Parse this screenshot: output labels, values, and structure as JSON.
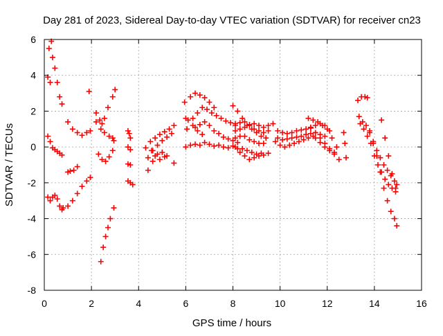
{
  "chart_data": {
    "type": "scatter",
    "title": "Day 281 of 2023, Sidereal Day-to-day VTEC variation (SDTVAR) for receiver cn23",
    "xlabel": "GPS time / hours",
    "ylabel": "SDTVAR / TECUs",
    "xlim": [
      0,
      16
    ],
    "ylim": [
      -8,
      6
    ],
    "xticks": [
      0,
      2,
      4,
      6,
      8,
      10,
      12,
      14,
      16
    ],
    "xtick_labels": [
      "0",
      "2",
      "4",
      "6",
      "8",
      "10",
      "12",
      "14",
      "16"
    ],
    "yticks": [
      -8,
      -6,
      -4,
      -2,
      0,
      2,
      4,
      6
    ],
    "ytick_labels": [
      "-8",
      "-6",
      "-4",
      "-2",
      "0",
      "2",
      "4",
      "6"
    ],
    "grid": true,
    "marker": "plus",
    "marker_color": "#ff0000",
    "segments": [
      {
        "x": [
          0.2,
          0.3,
          0.35,
          0.45,
          0.55,
          0.65,
          0.75
        ],
        "y": [
          5.5,
          5.9,
          5.0,
          4.4,
          3.6,
          2.8,
          2.4
        ]
      },
      {
        "x": [
          0.15,
          0.25
        ],
        "y": [
          3.9,
          3.6
        ]
      },
      {
        "x": [
          0.15,
          0.25,
          0.35,
          0.45,
          0.55,
          0.65,
          0.75
        ],
        "y": [
          0.6,
          0.3,
          -0.05,
          -0.15,
          -0.25,
          -0.35,
          -0.45
        ]
      },
      {
        "x": [
          0.15,
          0.25,
          0.35,
          0.45,
          0.55,
          0.65,
          0.75
        ],
        "y": [
          -2.8,
          -3.0,
          -2.8,
          -2.7,
          -2.9,
          -3.3,
          -3.5
        ]
      },
      {
        "x": [
          0.8,
          1.0,
          1.2,
          1.4,
          1.6,
          1.8,
          1.95
        ],
        "y": [
          -3.4,
          -3.3,
          -3.0,
          -2.6,
          -2.2,
          -1.9,
          -1.7
        ]
      },
      {
        "x": [
          1.0,
          1.1,
          1.25,
          1.4
        ],
        "y": [
          -1.4,
          -1.35,
          -1.3,
          -1.1
        ]
      },
      {
        "x": [
          1.0,
          1.2,
          1.4,
          1.6,
          1.8,
          1.95
        ],
        "y": [
          1.4,
          1.0,
          0.8,
          0.65,
          0.8,
          0.9
        ]
      },
      {
        "x": [
          1.9
        ],
        "y": [
          3.1
        ]
      },
      {
        "x": [
          2.2,
          2.35,
          2.45
        ],
        "y": [
          1.9,
          1.5,
          1.3
        ]
      },
      {
        "x": [
          2.2,
          2.4,
          2.55,
          2.7,
          2.9,
          3.0
        ],
        "y": [
          1.4,
          1.0,
          1.6,
          2.2,
          2.8,
          3.2
        ]
      },
      {
        "x": [
          2.3,
          2.45,
          2.6,
          2.75,
          2.9
        ],
        "y": [
          -0.4,
          -0.7,
          -0.8,
          -0.55,
          -0.2
        ]
      },
      {
        "x": [
          2.55,
          2.75,
          2.9,
          2.95
        ],
        "y": [
          0.8,
          0.6,
          0.5,
          0.35
        ]
      },
      {
        "x": [
          2.4,
          2.5,
          2.6,
          2.7,
          2.8,
          2.95
        ],
        "y": [
          -6.4,
          -5.6,
          -5.0,
          -4.5,
          -4.0,
          -3.4
        ]
      },
      {
        "x": [
          3.55,
          3.6,
          3.65
        ],
        "y": [
          0.9,
          0.75,
          0.5
        ]
      },
      {
        "x": [
          3.55,
          3.65
        ],
        "y": [
          0.0,
          -0.15
        ]
      },
      {
        "x": [
          3.55,
          3.65
        ],
        "y": [
          -0.95,
          -1.0
        ]
      },
      {
        "x": [
          3.55,
          3.65,
          3.75
        ],
        "y": [
          -1.9,
          -2.0,
          -2.1
        ]
      },
      {
        "x": [
          4.3,
          4.5,
          4.7,
          4.9,
          5.1,
          5.3,
          5.5
        ],
        "y": [
          -0.05,
          0.3,
          0.5,
          0.7,
          0.85,
          1.0,
          1.2
        ]
      },
      {
        "x": [
          4.4,
          4.6,
          4.8,
          5.0,
          5.2,
          5.4
        ],
        "y": [
          -0.6,
          -0.2,
          0.1,
          0.35,
          0.55,
          0.75
        ]
      },
      {
        "x": [
          4.4,
          4.6,
          4.8,
          5.0,
          5.2,
          5.5
        ],
        "y": [
          -1.3,
          -0.8,
          -0.4,
          -0.3,
          -0.5,
          -0.9
        ]
      },
      {
        "x": [
          4.55,
          4.7,
          4.9,
          5.1
        ],
        "y": [
          -0.2,
          -0.5,
          -0.7,
          -0.55
        ]
      },
      {
        "x": [
          5.95,
          6.0,
          6.05
        ],
        "y": [
          2.5,
          1.6,
          1.0
        ]
      },
      {
        "x": [
          6.2,
          6.4,
          6.6,
          6.8,
          7.0,
          7.2
        ],
        "y": [
          2.8,
          3.0,
          2.9,
          2.75,
          2.5,
          2.2
        ]
      },
      {
        "x": [
          6.3,
          6.5,
          6.7,
          6.9,
          7.1,
          7.3,
          7.5,
          7.7,
          7.9,
          8.1,
          8.3
        ],
        "y": [
          1.6,
          1.9,
          2.2,
          2.1,
          1.9,
          1.75,
          1.6,
          1.45,
          1.35,
          1.2,
          1.0
        ]
      },
      {
        "x": [
          6.4,
          6.6,
          6.8,
          7.0,
          7.2,
          7.4,
          7.6,
          7.8,
          8.0,
          8.2
        ],
        "y": [
          1.1,
          1.25,
          1.4,
          1.2,
          0.9,
          0.75,
          0.55,
          0.45,
          0.35,
          0.25
        ]
      },
      {
        "x": [
          6.0,
          6.2,
          6.4,
          6.6,
          6.8,
          7.0,
          7.2,
          7.4,
          7.6,
          7.8,
          8.0
        ],
        "y": [
          0.0,
          0.1,
          0.15,
          0.1,
          0.25,
          0.15,
          0.05,
          0.1,
          0.0,
          -0.05,
          0.05
        ]
      },
      {
        "x": [
          6.1,
          6.3,
          6.5,
          6.7
        ],
        "y": [
          1.5,
          1.2,
          0.9,
          0.7
        ]
      },
      {
        "x": [
          8.0,
          8.2,
          8.4,
          8.6,
          8.8,
          9.0,
          9.2,
          9.4
        ],
        "y": [
          2.3,
          2.0,
          1.6,
          1.2,
          1.0,
          0.8,
          0.6,
          0.5
        ]
      },
      {
        "x": [
          8.1,
          8.3,
          8.5,
          8.7,
          8.9,
          9.1,
          9.3,
          9.5
        ],
        "y": [
          1.3,
          1.35,
          1.4,
          1.25,
          1.0,
          0.9,
          0.8,
          0.9
        ]
      },
      {
        "x": [
          8.1,
          8.3,
          8.5,
          8.7,
          8.9,
          9.1,
          9.3,
          9.5,
          9.7
        ],
        "y": [
          0.9,
          1.0,
          1.1,
          1.2,
          1.3,
          1.2,
          1.1,
          1.2,
          1.3
        ]
      },
      {
        "x": [
          8.1,
          8.3,
          8.5,
          8.7,
          8.9,
          9.1,
          9.3
        ],
        "y": [
          0.5,
          0.6,
          0.6,
          0.4,
          0.3,
          0.2,
          0.2
        ]
      },
      {
        "x": [
          8.1,
          8.3,
          8.5,
          8.7,
          8.9,
          9.1,
          9.3,
          9.5
        ],
        "y": [
          0.0,
          -0.3,
          -0.5,
          -0.7,
          -0.6,
          -0.5,
          -0.45,
          -0.35
        ]
      },
      {
        "x": [
          8.2,
          8.4,
          8.6,
          8.8,
          9.0,
          9.2
        ],
        "y": [
          -0.1,
          -0.1,
          -0.2,
          -0.3,
          -0.4,
          -0.35
        ]
      },
      {
        "x": [
          9.9,
          10.1,
          10.3,
          10.5,
          10.7,
          10.9,
          11.1,
          11.3,
          11.5,
          11.7,
          11.9,
          12.1
        ],
        "y": [
          0.9,
          0.8,
          0.75,
          0.8,
          0.9,
          0.95,
          1.0,
          1.05,
          1.2,
          1.3,
          1.2,
          0.9
        ]
      },
      {
        "x": [
          9.9,
          10.1,
          10.3,
          10.5,
          10.7,
          10.9,
          11.1,
          11.3,
          11.5,
          11.7,
          11.9
        ],
        "y": [
          0.5,
          0.4,
          0.45,
          0.5,
          0.55,
          0.6,
          0.7,
          0.75,
          0.8,
          0.7,
          0.6
        ]
      },
      {
        "x": [
          9.8,
          10.0,
          10.2,
          10.4,
          10.6,
          10.8,
          11.0,
          11.2,
          11.4
        ],
        "y": [
          0.3,
          0.1,
          0.0,
          0.1,
          0.2,
          0.3,
          0.4,
          0.5,
          0.6
        ]
      },
      {
        "x": [
          11.2,
          11.4,
          11.6,
          11.8,
          12.0,
          12.2,
          12.4
        ],
        "y": [
          1.6,
          1.5,
          1.4,
          1.2,
          1.0,
          0.5,
          0.0
        ]
      },
      {
        "x": [
          11.3,
          11.5,
          11.7,
          11.9,
          12.1,
          12.3,
          12.5
        ],
        "y": [
          1.1,
          0.8,
          0.5,
          0.2,
          -0.1,
          -0.4,
          -0.7
        ]
      },
      {
        "x": [
          11.5,
          11.7,
          11.9,
          12.1,
          12.3
        ],
        "y": [
          0.5,
          0.25,
          0.0,
          -0.2,
          -0.3
        ]
      },
      {
        "x": [
          12.7,
          12.75,
          12.8
        ],
        "y": [
          0.8,
          0.2,
          -0.6
        ]
      },
      {
        "x": [
          13.3,
          13.45,
          13.6,
          13.7
        ],
        "y": [
          2.6,
          2.8,
          2.8,
          2.75
        ]
      },
      {
        "x": [
          13.35,
          13.5,
          13.65,
          13.8,
          13.95,
          14.1,
          14.25,
          14.4,
          14.55,
          14.7,
          14.85,
          14.95
        ],
        "y": [
          1.7,
          1.4,
          1.2,
          0.9,
          0.3,
          -0.2,
          -0.6,
          -1.0,
          -1.3,
          -1.6,
          -1.9,
          -2.1
        ]
      },
      {
        "x": [
          13.4,
          13.55,
          13.7,
          13.85,
          14.0,
          14.15,
          14.3,
          14.45,
          14.6,
          14.75,
          14.9
        ],
        "y": [
          1.3,
          1.0,
          0.6,
          0.2,
          -0.5,
          -1.0,
          -1.4,
          -1.8,
          -2.1,
          -2.3,
          -2.5
        ]
      },
      {
        "x": [
          13.8,
          13.95,
          14.1,
          14.25,
          14.4,
          14.55,
          14.7,
          14.85,
          14.95
        ],
        "y": [
          0.8,
          0.2,
          -0.5,
          -1.4,
          -2.3,
          -3.0,
          -3.6,
          -4.0,
          -4.4
        ]
      },
      {
        "x": [
          14.3,
          14.45,
          14.6,
          14.75,
          14.9
        ],
        "y": [
          1.5,
          0.5,
          -0.5,
          -1.5,
          -2.3
        ]
      }
    ]
  }
}
